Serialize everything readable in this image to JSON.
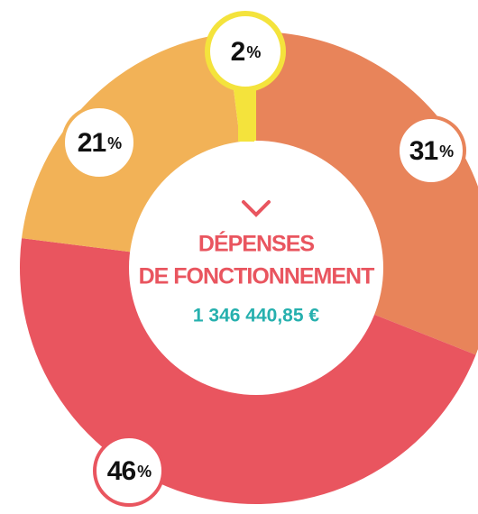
{
  "chart_data": {
    "type": "donut",
    "title_lines": [
      "DÉPENSES",
      "DE FONCTIONNEMENT"
    ],
    "total": "1 346 440,85 €",
    "values": [
      31,
      46,
      21,
      2
    ],
    "value_labels": [
      "31%",
      "46%",
      "21%",
      "2%"
    ],
    "colors": [
      "#e8845a",
      "#e9555f",
      "#f2b257",
      "#f4e33c"
    ]
  }
}
